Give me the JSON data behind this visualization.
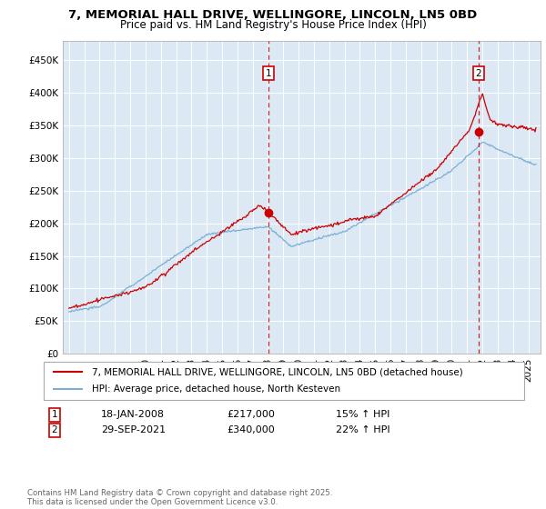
{
  "title": "7, MEMORIAL HALL DRIVE, WELLINGORE, LINCOLN, LN5 0BD",
  "subtitle": "Price paid vs. HM Land Registry's House Price Index (HPI)",
  "red_label": "7, MEMORIAL HALL DRIVE, WELLINGORE, LINCOLN, LN5 0BD (detached house)",
  "blue_label": "HPI: Average price, detached house, North Kesteven",
  "annotation1_date": "18-JAN-2008",
  "annotation1_price": "£217,000",
  "annotation1_hpi": "15% ↑ HPI",
  "annotation2_date": "29-SEP-2021",
  "annotation2_price": "£340,000",
  "annotation2_hpi": "22% ↑ HPI",
  "footer": "Contains HM Land Registry data © Crown copyright and database right 2025.\nThis data is licensed under the Open Government Licence v3.0.",
  "ylim": [
    0,
    480000
  ],
  "yticks": [
    0,
    50000,
    100000,
    150000,
    200000,
    250000,
    300000,
    350000,
    400000,
    450000
  ],
  "plot_bg": "#dce9f5",
  "red_color": "#cc0000",
  "blue_color": "#7ab0d4",
  "marker1_x": 2008.05,
  "marker1_y": 217000,
  "marker2_x": 2021.75,
  "marker2_y": 340000,
  "xlim_left": 1994.6,
  "xlim_right": 2025.8
}
